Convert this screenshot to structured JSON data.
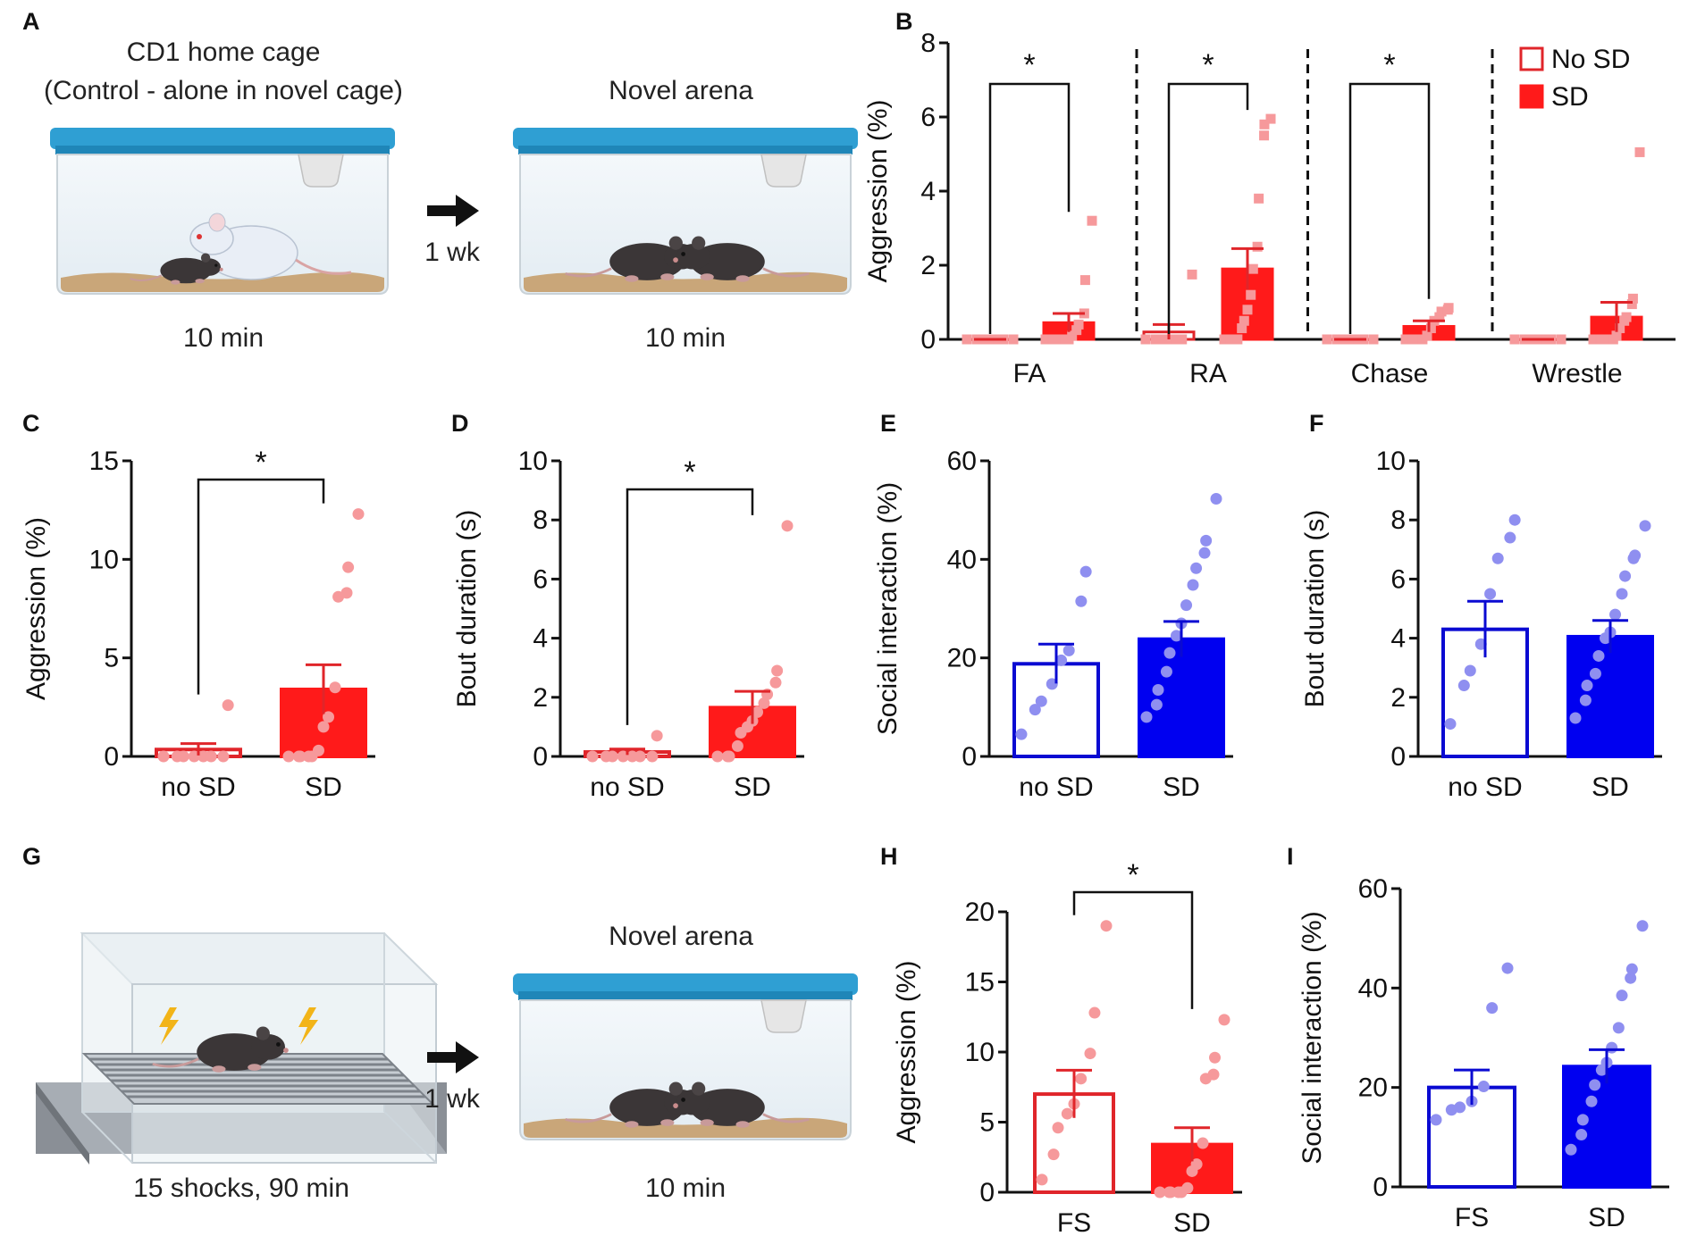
{
  "colors": {
    "red": "#ff1a1a",
    "red_edge": "#e0252a",
    "pink": "#f6999b",
    "blue": "#0000f0",
    "blue_edge": "#0a0ad2",
    "lavender": "#8f8ff0",
    "cage_lid": "#2f9fd3",
    "bedding": "#c9a679"
  },
  "panel_letters": [
    "A",
    "B",
    "C",
    "D",
    "E",
    "F",
    "G",
    "H",
    "I"
  ],
  "schematic_a": {
    "left_title_line1": "CD1 home cage",
    "left_title_line2": "(Control - alone in novel cage)",
    "left_caption": "10 min",
    "arrow_label": "1 wk",
    "right_title": "Novel arena",
    "right_caption": "10 min"
  },
  "schematic_g": {
    "left_caption": "15 shocks, 90 min",
    "arrow_label": "1 wk",
    "right_title": "Novel arena",
    "right_caption": "10 min"
  },
  "chart_data": [
    {
      "panel": "B",
      "type": "bar",
      "ylabel": "Aggression  (%)",
      "ylim": [
        0,
        8
      ],
      "yticks": [
        0,
        2,
        4,
        6,
        8
      ],
      "categories": [
        "FA",
        "RA",
        "Chase",
        "Wrestle"
      ],
      "legend": [
        "No SD",
        "SD"
      ],
      "legend_position": "top-right",
      "significance": [
        "*",
        "*",
        "*",
        ""
      ],
      "series": [
        {
          "name": "No SD",
          "style": "open-red",
          "values": [
            0,
            0.2,
            0,
            0
          ],
          "sem": [
            0,
            0.2,
            0,
            0
          ],
          "points": [
            [
              0,
              0,
              0,
              0,
              0,
              0,
              0
            ],
            [
              0,
              0,
              0,
              0,
              0,
              0,
              1.75
            ],
            [
              0,
              0,
              0,
              0,
              0,
              0,
              0
            ],
            [
              0,
              0,
              0,
              0,
              0,
              0,
              0
            ]
          ]
        },
        {
          "name": "SD",
          "style": "filled-red",
          "values": [
            0.45,
            1.9,
            0.35,
            0.6
          ],
          "sem": [
            0.25,
            0.55,
            0.15,
            0.4
          ],
          "points": [
            [
              0,
              0,
              0,
              0,
              0,
              0,
              0,
              0.1,
              0.25,
              0.4,
              0.7,
              1.6,
              3.2
            ],
            [
              0,
              0,
              0,
              0,
              0,
              0.3,
              0.5,
              0.8,
              1.2,
              1.9,
              2.5,
              3.8,
              5.5,
              5.8,
              5.95
            ],
            [
              0,
              0,
              0,
              0,
              0,
              0.1,
              0.3,
              0.5,
              0.6,
              0.75,
              0.8,
              0.85
            ],
            [
              0,
              0,
              0,
              0,
              0,
              0,
              0.1,
              0.3,
              0.5,
              0.6,
              0.95,
              1.1,
              5.05
            ]
          ]
        }
      ]
    },
    {
      "panel": "C",
      "type": "bar",
      "ylabel": "Aggression (%)",
      "ylim": [
        0,
        15
      ],
      "yticks": [
        0,
        5,
        10,
        15
      ],
      "categories": [
        "no SD",
        "SD"
      ],
      "styles": [
        "open-red",
        "filled-red"
      ],
      "values": [
        0.35,
        3.4
      ],
      "sem": [
        0.3,
        1.25
      ],
      "points": [
        [
          0,
          0,
          0,
          0,
          0,
          0,
          0,
          2.6
        ],
        [
          0,
          0,
          0,
          0,
          0,
          0.3,
          1.5,
          2.0,
          3.5,
          8.1,
          8.3,
          9.6,
          12.3
        ]
      ],
      "significance": "*"
    },
    {
      "panel": "D",
      "type": "bar",
      "ylabel": "Bout duration (s)",
      "ylim": [
        0,
        10
      ],
      "yticks": [
        0,
        2,
        4,
        6,
        8,
        10
      ],
      "categories": [
        "no SD",
        "SD"
      ],
      "styles": [
        "open-red",
        "filled-red"
      ],
      "values": [
        0.15,
        1.65
      ],
      "sem": [
        0.1,
        0.55
      ],
      "points": [
        [
          0,
          0,
          0,
          0,
          0,
          0,
          0,
          0.7
        ],
        [
          0,
          0,
          0,
          0.35,
          0.8,
          1.0,
          1.2,
          1.5,
          1.8,
          2.1,
          2.5,
          2.9,
          7.8
        ]
      ],
      "significance": "*"
    },
    {
      "panel": "E",
      "type": "bar",
      "ylabel": "Social interaction (%)",
      "ylim": [
        0,
        60
      ],
      "yticks": [
        0,
        20,
        40,
        60
      ],
      "categories": [
        "no SD",
        "SD"
      ],
      "styles": [
        "open-blue",
        "filled-blue"
      ],
      "values": [
        18.8,
        23.8
      ],
      "sem": [
        4.0,
        3.6
      ],
      "points": [
        [
          4.5,
          9.5,
          11.2,
          14.7,
          19.5,
          21.5,
          31.5,
          37.5
        ],
        [
          8,
          10.5,
          13.5,
          17.2,
          21,
          24.5,
          27,
          30.7,
          34.8,
          38.2,
          41.3,
          43.8,
          52.3
        ]
      ],
      "significance": ""
    },
    {
      "panel": "F",
      "type": "bar",
      "ylabel": "Bout duration (s)",
      "ylim": [
        0,
        10
      ],
      "yticks": [
        0,
        2,
        4,
        6,
        8,
        10
      ],
      "categories": [
        "no SD",
        "SD"
      ],
      "styles": [
        "open-blue",
        "filled-blue"
      ],
      "values": [
        4.3,
        4.05
      ],
      "sem": [
        0.95,
        0.55
      ],
      "points": [
        [
          1.1,
          2.4,
          2.9,
          3.8,
          5.5,
          6.7,
          7.4,
          8.0
        ],
        [
          1.3,
          1.9,
          2.4,
          2.8,
          3.4,
          4.0,
          4.2,
          4.8,
          5.5,
          6.1,
          6.7,
          6.8,
          7.8
        ]
      ],
      "significance": ""
    },
    {
      "panel": "H",
      "type": "bar",
      "ylabel": "Aggression (%)",
      "ylim": [
        0,
        20
      ],
      "yticks": [
        0,
        5,
        10,
        15,
        20
      ],
      "categories": [
        "FS",
        "SD"
      ],
      "styles": [
        "open-red",
        "filled-red"
      ],
      "values": [
        7.0,
        3.4
      ],
      "sem": [
        1.7,
        1.2
      ],
      "points": [
        [
          0.9,
          2.7,
          4.6,
          5.6,
          6.3,
          8.1,
          9.9,
          12.8,
          19.0
        ],
        [
          0,
          0,
          0,
          0,
          0,
          0.3,
          1.5,
          2.0,
          3.5,
          8.1,
          8.4,
          9.6,
          12.3
        ]
      ],
      "significance": "*"
    },
    {
      "panel": "I",
      "type": "bar",
      "ylabel": "Social interaction (%)",
      "ylim": [
        0,
        60
      ],
      "yticks": [
        0,
        20,
        40,
        60
      ],
      "categories": [
        "FS",
        "SD"
      ],
      "styles": [
        "open-blue",
        "filled-blue"
      ],
      "values": [
        20.0,
        24.2
      ],
      "sem": [
        3.5,
        3.4
      ],
      "points": [
        [
          13.5,
          15.5,
          16.0,
          17.2,
          20.2,
          36.0,
          44.0
        ],
        [
          7.5,
          10.5,
          13.5,
          17.2,
          20.5,
          23.5,
          25,
          28,
          32,
          38.5,
          42,
          43.8,
          52.5
        ]
      ],
      "significance": ""
    }
  ]
}
